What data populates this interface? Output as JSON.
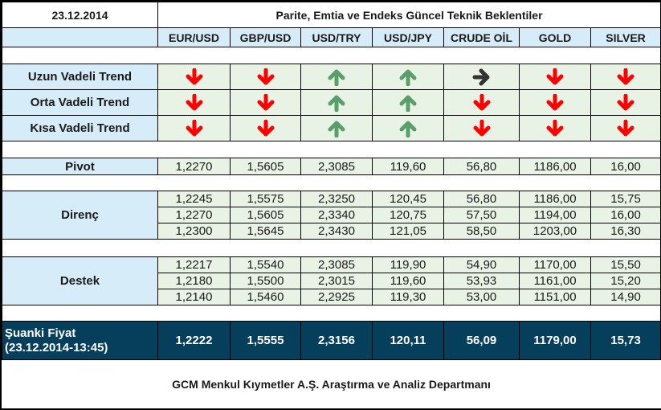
{
  "header": {
    "date": "23.12.2014",
    "title": "Parite, Emtia ve Endeks Güncel Teknik Beklentiler"
  },
  "columns": [
    "EUR/USD",
    "GBP/USD",
    "USD/TRY",
    "USD/JPY",
    "CRUDE OİL",
    "GOLD",
    "SILVER"
  ],
  "trends": [
    {
      "label": "Uzun Vadeli Trend",
      "directions": [
        "down",
        "down",
        "up",
        "up",
        "right",
        "down",
        "down"
      ]
    },
    {
      "label": "Orta Vadeli Trend",
      "directions": [
        "down",
        "down",
        "up",
        "up",
        "down",
        "down",
        "down"
      ]
    },
    {
      "label": "Kısa Vadeli Trend",
      "directions": [
        "down",
        "down",
        "up",
        "up",
        "down",
        "down",
        "down"
      ]
    }
  ],
  "pivot": {
    "label": "Pivot",
    "values": [
      "1,2270",
      "1,5605",
      "2,3085",
      "119,60",
      "56,80",
      "1186,00",
      "16,00"
    ]
  },
  "resistance": {
    "label": "Direnç",
    "rows": [
      [
        "1,2245",
        "1,5575",
        "2,3250",
        "120,45",
        "56,80",
        "1186,00",
        "15,75"
      ],
      [
        "1,2270",
        "1,5605",
        "2,3340",
        "120,75",
        "57,50",
        "1194,00",
        "16,00"
      ],
      [
        "1,2300",
        "1,5645",
        "2,3430",
        "121,05",
        "58,50",
        "1203,00",
        "16,30"
      ]
    ]
  },
  "support": {
    "label": "Destek",
    "rows": [
      [
        "1,2217",
        "1,5540",
        "2,3085",
        "119,90",
        "54,90",
        "1170,00",
        "15,50"
      ],
      [
        "1,2180",
        "1,5500",
        "2,3015",
        "119,60",
        "53,93",
        "1161,00",
        "15,20"
      ],
      [
        "1,2140",
        "1,5460",
        "2,2925",
        "119,30",
        "53,00",
        "1151,00",
        "14,90"
      ]
    ]
  },
  "current_price": {
    "label_line1": "Şuanki Fiyat",
    "label_line2": "(23.12.2014-13:45)",
    "values": [
      "1,2222",
      "1,5555",
      "2,3156",
      "120,11",
      "56,09",
      "1179,00",
      "15,73"
    ]
  },
  "footer": {
    "text": "GCM Menkul Kıymetler A.Ş. Araştırma ve Analiz Departmanı"
  },
  "colors": {
    "header_bg": "#d6ecf8",
    "cell_bg": "#e8f3e6",
    "price_bg": "#063f5b",
    "arrow_down": "#ff0000",
    "arrow_up": "#5a9e6a",
    "arrow_right": "#333333"
  }
}
